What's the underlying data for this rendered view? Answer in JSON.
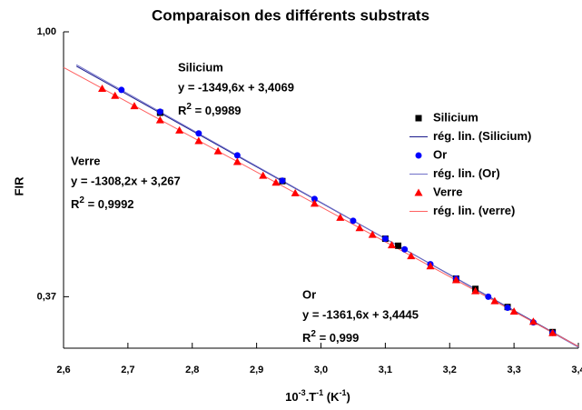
{
  "chart_data": {
    "type": "scatter",
    "title": "Comparaison des différents substrats",
    "y_label": "FIR",
    "x_label": [
      "10",
      "-3",
      ".T",
      "-1",
      " (K",
      "-1",
      ")"
    ],
    "log_y": true,
    "xlim": [
      2.6,
      3.4
    ],
    "ylim": [
      0.305,
      1.0
    ],
    "xticks": [
      {
        "value": 2.6,
        "label": "2,6"
      },
      {
        "value": 2.7,
        "label": "2,7"
      },
      {
        "value": 2.8,
        "label": "2,8"
      },
      {
        "value": 2.9,
        "label": "2,9"
      },
      {
        "value": 3.0,
        "label": "3,0"
      },
      {
        "value": 3.1,
        "label": "3,1"
      },
      {
        "value": 3.2,
        "label": "3,2"
      },
      {
        "value": 3.3,
        "label": "3,3"
      },
      {
        "value": 3.4,
        "label": "3,4"
      }
    ],
    "yticks": [
      {
        "value": 1.0,
        "label": "1,00"
      },
      {
        "value": 0.37,
        "label": "0,37"
      }
    ],
    "series": [
      {
        "name": "Silicium",
        "kind": "points",
        "marker": "square",
        "color": "#000000",
        "x": [
          2.75,
          2.94,
          3.1,
          3.12,
          3.21,
          3.24,
          3.29,
          3.36
        ],
        "values": [
          0.738,
          0.571,
          0.46,
          0.448,
          0.396,
          0.381,
          0.356,
          0.324
        ]
      },
      {
        "name": "rég. lin. (Silicium)",
        "kind": "line",
        "color": "#1a1a8c",
        "x": [
          2.62,
          3.4
        ],
        "values": [
          0.879,
          0.307
        ]
      },
      {
        "name": "Or",
        "kind": "points",
        "marker": "circle",
        "color": "#0000ff",
        "x": [
          2.69,
          2.75,
          2.81,
          2.87,
          2.94,
          2.99,
          3.05,
          3.1,
          3.13,
          3.17,
          3.21,
          3.26,
          3.29,
          3.33,
          3.36
        ],
        "values": [
          0.804,
          0.741,
          0.683,
          0.629,
          0.572,
          0.534,
          0.492,
          0.46,
          0.442,
          0.418,
          0.396,
          0.37,
          0.355,
          0.336,
          0.323
        ]
      },
      {
        "name": "rég. lin. (Or)",
        "kind": "line",
        "color": "#7070c8",
        "x": [
          2.62,
          3.4
        ],
        "values": [
          0.884,
          0.306
        ]
      },
      {
        "name": "Verre",
        "kind": "points",
        "marker": "triangle",
        "color": "#ff0000",
        "x": [
          2.66,
          2.68,
          2.71,
          2.75,
          2.78,
          2.81,
          2.84,
          2.87,
          2.91,
          2.93,
          2.96,
          2.99,
          3.03,
          3.06,
          3.08,
          3.11,
          3.14,
          3.17,
          3.21,
          3.24,
          3.27,
          3.3,
          3.33,
          3.36
        ],
        "values": [
          0.808,
          0.787,
          0.757,
          0.718,
          0.691,
          0.664,
          0.639,
          0.614,
          0.583,
          0.568,
          0.546,
          0.525,
          0.498,
          0.479,
          0.467,
          0.449,
          0.431,
          0.415,
          0.394,
          0.378,
          0.364,
          0.35,
          0.337,
          0.323
        ]
      },
      {
        "name": "rég. lin. (verre)",
        "kind": "line",
        "color": "#ff6060",
        "x": [
          2.6,
          3.4
        ],
        "values": [
          0.875,
          0.307
        ]
      }
    ],
    "annotations": [
      {
        "name": "Silicium",
        "equation": "y = -1349,6x + 3,4069",
        "r2_base": "R",
        "r2_sup": "2",
        "r2_value": " = 0,9989"
      },
      {
        "name": "Verre",
        "equation": "y = -1308,2x + 3,267",
        "r2_base": "R",
        "r2_sup": "2",
        "r2_value": " = 0,9992"
      },
      {
        "name": "Or",
        "equation": "y = -1361,6x + 3,4445",
        "r2_base": "R",
        "r2_sup": "2",
        "r2_value": " = 0,999"
      }
    ]
  }
}
